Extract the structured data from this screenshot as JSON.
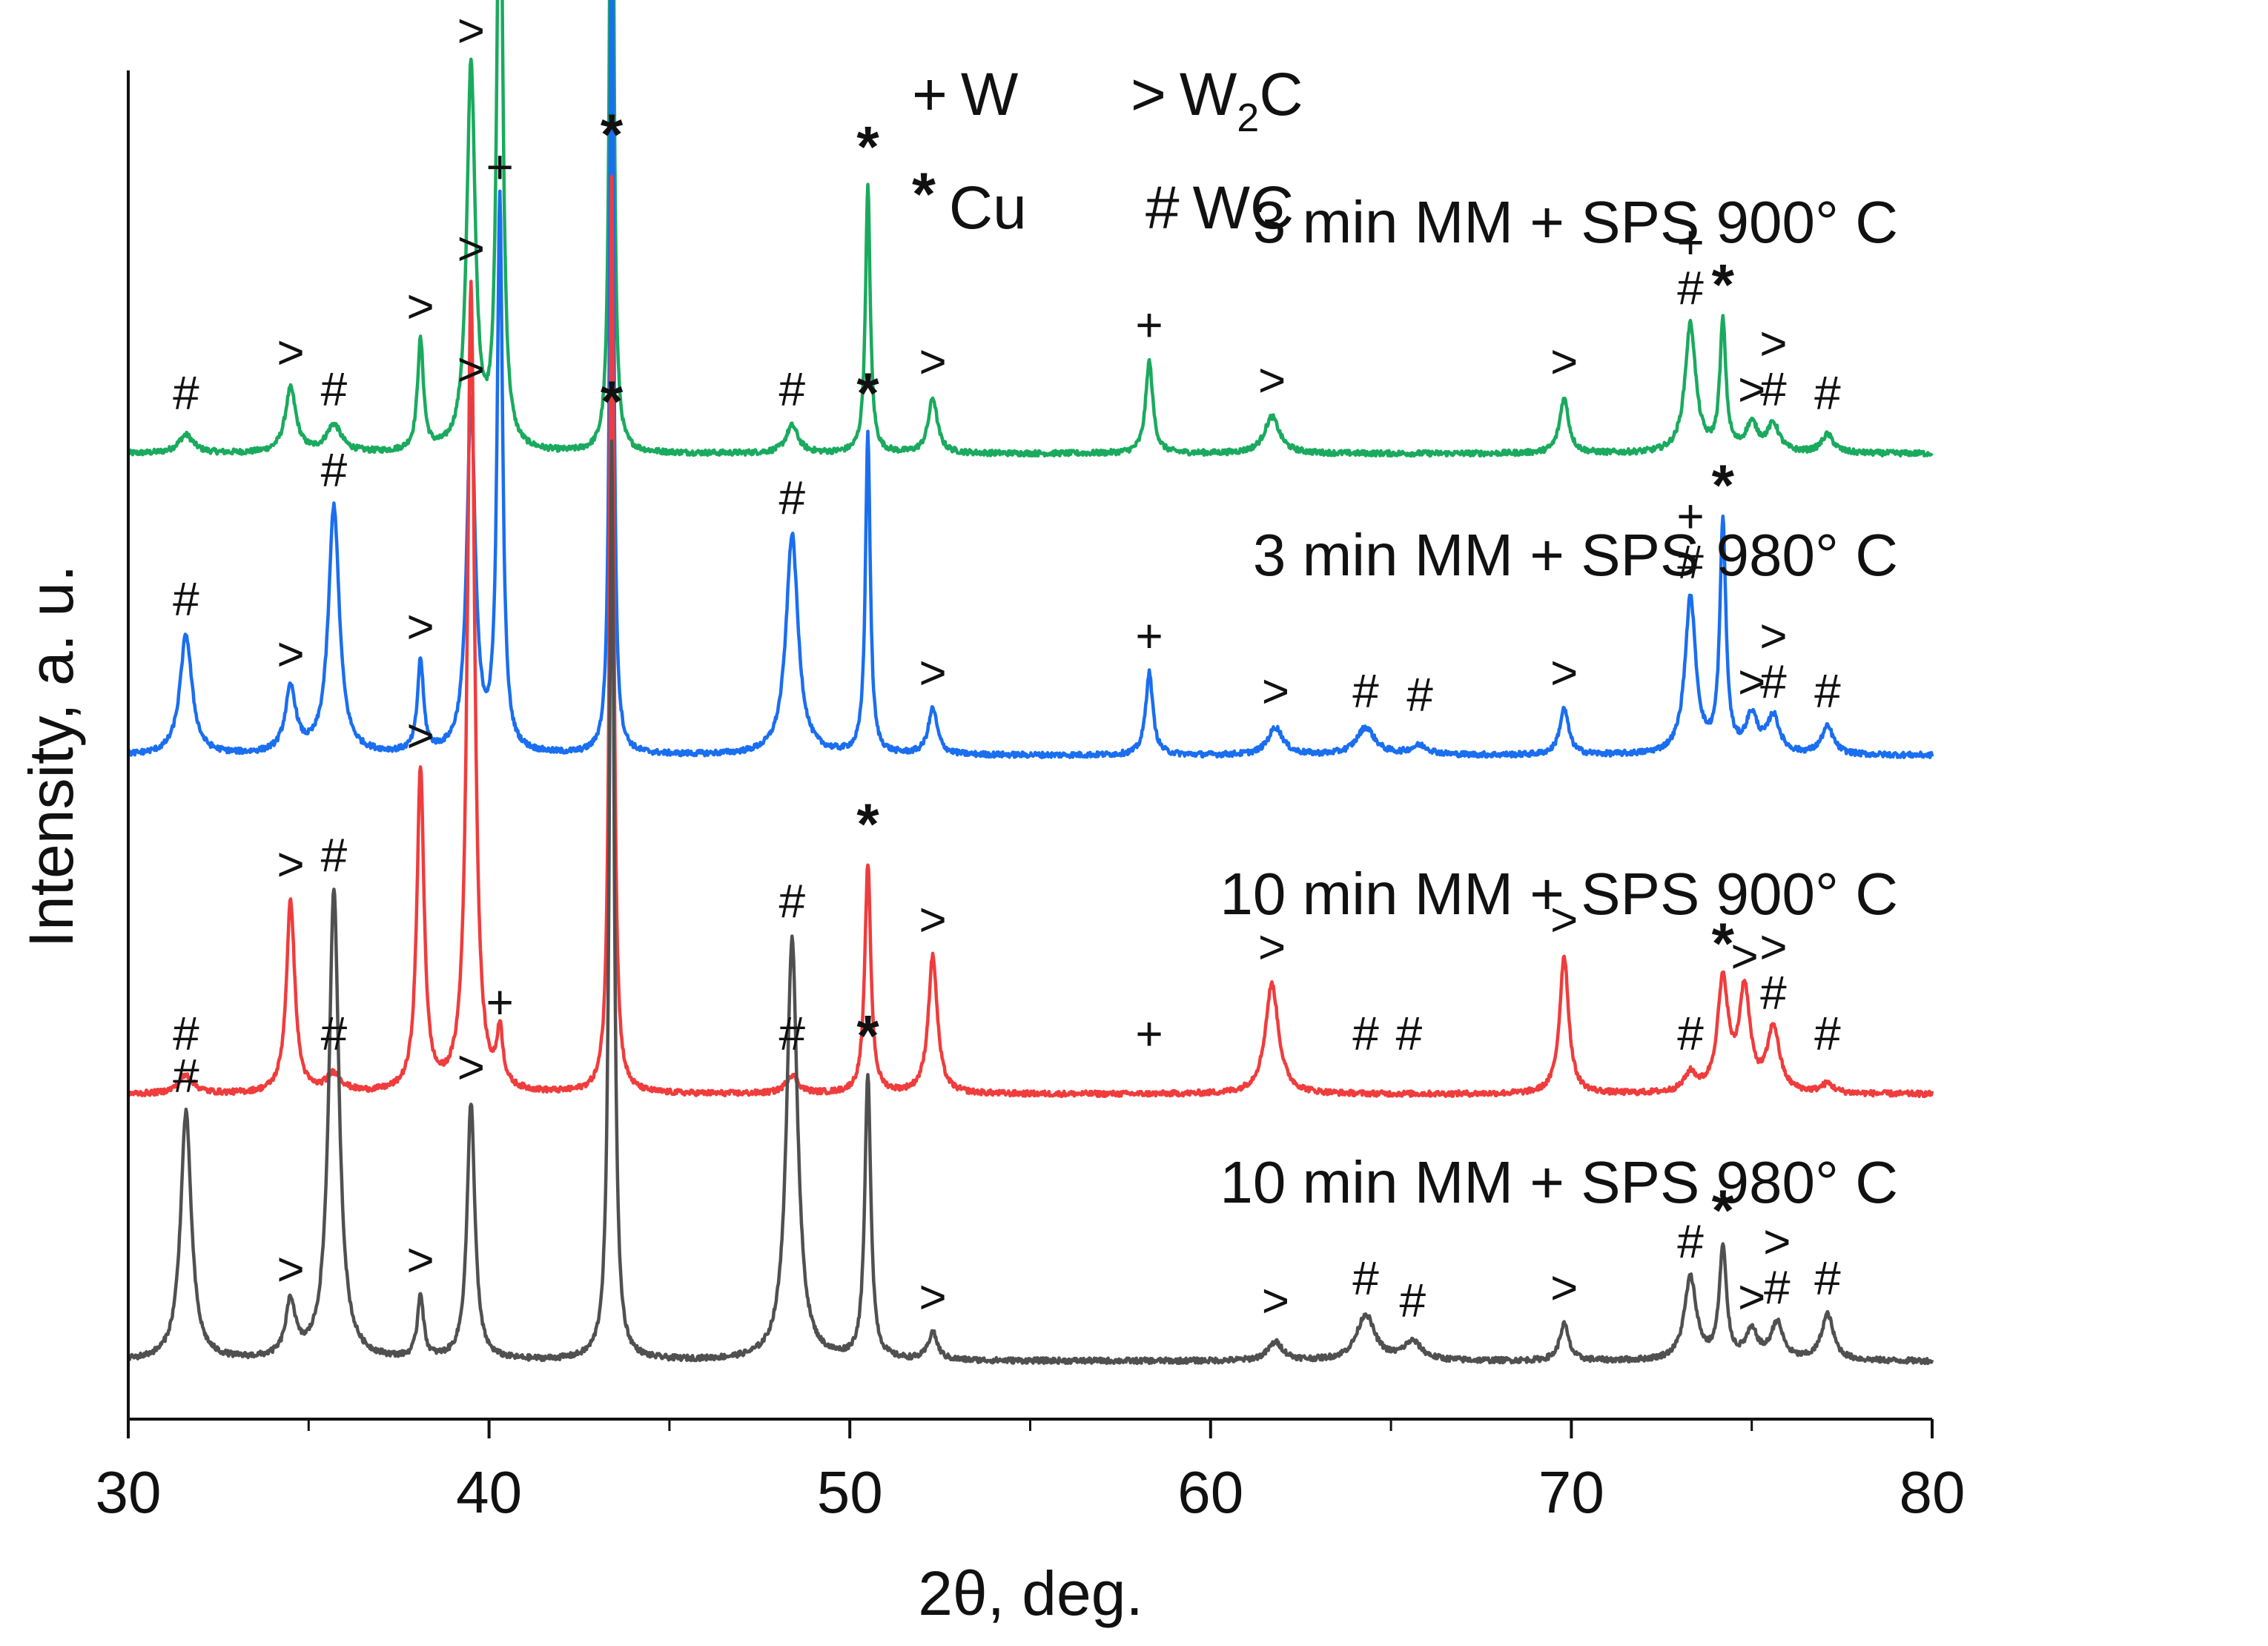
{
  "chart_data": {
    "type": "line",
    "title": "",
    "xlabel": "2θ, deg.",
    "ylabel": "Intensity, a. u.",
    "xlim": [
      30,
      80
    ],
    "xticks": [
      30,
      40,
      50,
      60,
      70,
      80
    ],
    "grid": false,
    "y_units": "relative intensity (a. u.), each pattern normalized and vertically offset",
    "legend": {
      "placement": "top-center",
      "entries": [
        {
          "symbol": "+",
          "text": "W",
          "sub": ""
        },
        {
          "symbol": ">",
          "text": "W",
          "sub": "2",
          "suffix": "C"
        },
        {
          "symbol": "*",
          "text": "Cu",
          "sub": ""
        },
        {
          "symbol": "#",
          "text": "WC",
          "sub": ""
        }
      ]
    },
    "series": [
      {
        "name": "3 min MM + SPS 900° C",
        "color": "#1aaa5e",
        "offset": 3,
        "peaks": [
          {
            "x": 31.6,
            "h": 0.02,
            "w": 0.25,
            "marker": "#"
          },
          {
            "x": 34.5,
            "h": 0.07,
            "w": 0.18,
            "marker": ">"
          },
          {
            "x": 35.7,
            "h": 0.03,
            "w": 0.25,
            "marker": "#"
          },
          {
            "x": 38.1,
            "h": 0.12,
            "w": 0.1,
            "marker": ">"
          },
          {
            "x": 39.5,
            "h": 0.42,
            "w": 0.14,
            "marker": ">"
          },
          {
            "x": 40.3,
            "h": 0.75,
            "w": 0.09,
            "marker": "+"
          },
          {
            "x": 43.4,
            "h": 1.0,
            "w": 0.06,
            "marker": "*"
          },
          {
            "x": 48.4,
            "h": 0.03,
            "w": 0.2,
            "marker": "#"
          },
          {
            "x": 50.5,
            "h": 0.29,
            "w": 0.08,
            "marker": "*"
          },
          {
            "x": 52.3,
            "h": 0.06,
            "w": 0.15,
            "marker": ">"
          },
          {
            "x": 58.3,
            "h": 0.1,
            "w": 0.12,
            "marker": "+"
          },
          {
            "x": 61.7,
            "h": 0.04,
            "w": 0.25,
            "marker": ">"
          },
          {
            "x": 69.8,
            "h": 0.06,
            "w": 0.15,
            "marker": ">"
          },
          {
            "x": 73.3,
            "h": 0.14,
            "w": 0.18,
            "marker": "+#"
          },
          {
            "x": 74.2,
            "h": 0.14,
            "w": 0.1,
            "marker": "*"
          },
          {
            "x": 75.0,
            "h": 0.03,
            "w": 0.2,
            "marker": ">"
          },
          {
            "x": 75.6,
            "h": 0.03,
            "w": 0.2,
            "marker": ">#"
          },
          {
            "x": 77.1,
            "h": 0.02,
            "w": 0.2,
            "marker": "#"
          }
        ]
      },
      {
        "name": "3 min MM + SPS 980° C",
        "color": "#1a6ef0",
        "offset": 2,
        "peaks": [
          {
            "x": 31.6,
            "h": 0.13,
            "w": 0.2,
            "marker": "#"
          },
          {
            "x": 34.5,
            "h": 0.07,
            "w": 0.18,
            "marker": ">"
          },
          {
            "x": 35.7,
            "h": 0.27,
            "w": 0.18,
            "marker": "#"
          },
          {
            "x": 38.1,
            "h": 0.1,
            "w": 0.1,
            "marker": ">"
          },
          {
            "x": 39.5,
            "h": 0.38,
            "w": 0.14,
            "marker": ">"
          },
          {
            "x": 40.3,
            "h": 0.6,
            "w": 0.09,
            "marker": "+"
          },
          {
            "x": 43.4,
            "h": 1.0,
            "w": 0.06,
            "marker": "*"
          },
          {
            "x": 48.4,
            "h": 0.24,
            "w": 0.2,
            "marker": "#"
          },
          {
            "x": 50.5,
            "h": 0.35,
            "w": 0.08,
            "marker": "*"
          },
          {
            "x": 52.3,
            "h": 0.05,
            "w": 0.15,
            "marker": ">"
          },
          {
            "x": 58.3,
            "h": 0.09,
            "w": 0.12,
            "marker": "+"
          },
          {
            "x": 61.8,
            "h": 0.03,
            "w": 0.25,
            "marker": ">"
          },
          {
            "x": 64.3,
            "h": 0.03,
            "w": 0.3,
            "marker": "#"
          },
          {
            "x": 65.8,
            "h": 0.01,
            "w": 0.3,
            "marker": "#"
          },
          {
            "x": 69.8,
            "h": 0.05,
            "w": 0.15,
            "marker": ">"
          },
          {
            "x": 73.3,
            "h": 0.17,
            "w": 0.18,
            "marker": "+#"
          },
          {
            "x": 74.2,
            "h": 0.25,
            "w": 0.1,
            "marker": "*"
          },
          {
            "x": 75.0,
            "h": 0.04,
            "w": 0.2,
            "marker": ">"
          },
          {
            "x": 75.6,
            "h": 0.04,
            "w": 0.2,
            "marker": ">#"
          },
          {
            "x": 77.1,
            "h": 0.03,
            "w": 0.2,
            "marker": "#"
          }
        ]
      },
      {
        "name": "10 min MM + SPS 900° C",
        "color": "#f03c3c",
        "offset": 1,
        "peaks": [
          {
            "x": 31.6,
            "h": 0.02,
            "w": 0.25,
            "marker": "#"
          },
          {
            "x": 34.5,
            "h": 0.21,
            "w": 0.14,
            "marker": ">"
          },
          {
            "x": 35.7,
            "h": 0.02,
            "w": 0.25,
            "marker": "#"
          },
          {
            "x": 38.1,
            "h": 0.35,
            "w": 0.12,
            "marker": ">"
          },
          {
            "x": 39.5,
            "h": 0.88,
            "w": 0.12,
            "marker": ">"
          },
          {
            "x": 40.3,
            "h": 0.06,
            "w": 0.1,
            "marker": "+"
          },
          {
            "x": 43.4,
            "h": 1.0,
            "w": 0.07,
            "marker": "*"
          },
          {
            "x": 48.4,
            "h": 0.02,
            "w": 0.2,
            "marker": "#"
          },
          {
            "x": 50.5,
            "h": 0.25,
            "w": 0.1,
            "marker": "*"
          },
          {
            "x": 52.3,
            "h": 0.15,
            "w": 0.15,
            "marker": ">"
          },
          {
            "x": 58.3,
            "h": 0.0,
            "w": 0.2,
            "marker": "+"
          },
          {
            "x": 61.7,
            "h": 0.12,
            "w": 0.22,
            "marker": ">"
          },
          {
            "x": 64.3,
            "h": 0.0,
            "w": 0.3,
            "marker": "#"
          },
          {
            "x": 65.5,
            "h": 0.0,
            "w": 0.3,
            "marker": "#"
          },
          {
            "x": 69.8,
            "h": 0.15,
            "w": 0.15,
            "marker": ">"
          },
          {
            "x": 73.3,
            "h": 0.02,
            "w": 0.2,
            "marker": "#"
          },
          {
            "x": 74.2,
            "h": 0.12,
            "w": 0.18,
            "marker": "*"
          },
          {
            "x": 74.8,
            "h": 0.11,
            "w": 0.18,
            "marker": ">"
          },
          {
            "x": 75.6,
            "h": 0.07,
            "w": 0.2,
            "marker": ">#"
          },
          {
            "x": 77.1,
            "h": 0.01,
            "w": 0.2,
            "marker": "#"
          }
        ]
      },
      {
        "name": "10 min MM + SPS 980° C",
        "color": "#505050",
        "offset": 0,
        "peaks": [
          {
            "x": 31.6,
            "h": 0.27,
            "w": 0.18,
            "marker": "#"
          },
          {
            "x": 34.5,
            "h": 0.06,
            "w": 0.16,
            "marker": ">"
          },
          {
            "x": 35.7,
            "h": 0.51,
            "w": 0.17,
            "marker": "#"
          },
          {
            "x": 38.1,
            "h": 0.07,
            "w": 0.1,
            "marker": ">"
          },
          {
            "x": 39.5,
            "h": 0.28,
            "w": 0.13,
            "marker": ">"
          },
          {
            "x": 43.4,
            "h": 1.0,
            "w": 0.08,
            "marker": "*"
          },
          {
            "x": 48.4,
            "h": 0.46,
            "w": 0.18,
            "marker": "#"
          },
          {
            "x": 50.5,
            "h": 0.31,
            "w": 0.1,
            "marker": "*"
          },
          {
            "x": 52.3,
            "h": 0.03,
            "w": 0.15,
            "marker": ">"
          },
          {
            "x": 61.8,
            "h": 0.02,
            "w": 0.25,
            "marker": ">"
          },
          {
            "x": 64.3,
            "h": 0.05,
            "w": 0.3,
            "marker": "#"
          },
          {
            "x": 65.6,
            "h": 0.02,
            "w": 0.3,
            "marker": "#"
          },
          {
            "x": 69.8,
            "h": 0.04,
            "w": 0.15,
            "marker": ">"
          },
          {
            "x": 73.3,
            "h": 0.09,
            "w": 0.2,
            "marker": "#"
          },
          {
            "x": 74.2,
            "h": 0.12,
            "w": 0.12,
            "marker": "*"
          },
          {
            "x": 75.0,
            "h": 0.03,
            "w": 0.2,
            "marker": ">"
          },
          {
            "x": 75.7,
            "h": 0.04,
            "w": 0.2,
            "marker": ">#"
          },
          {
            "x": 77.1,
            "h": 0.05,
            "w": 0.2,
            "marker": "#"
          }
        ]
      }
    ]
  }
}
